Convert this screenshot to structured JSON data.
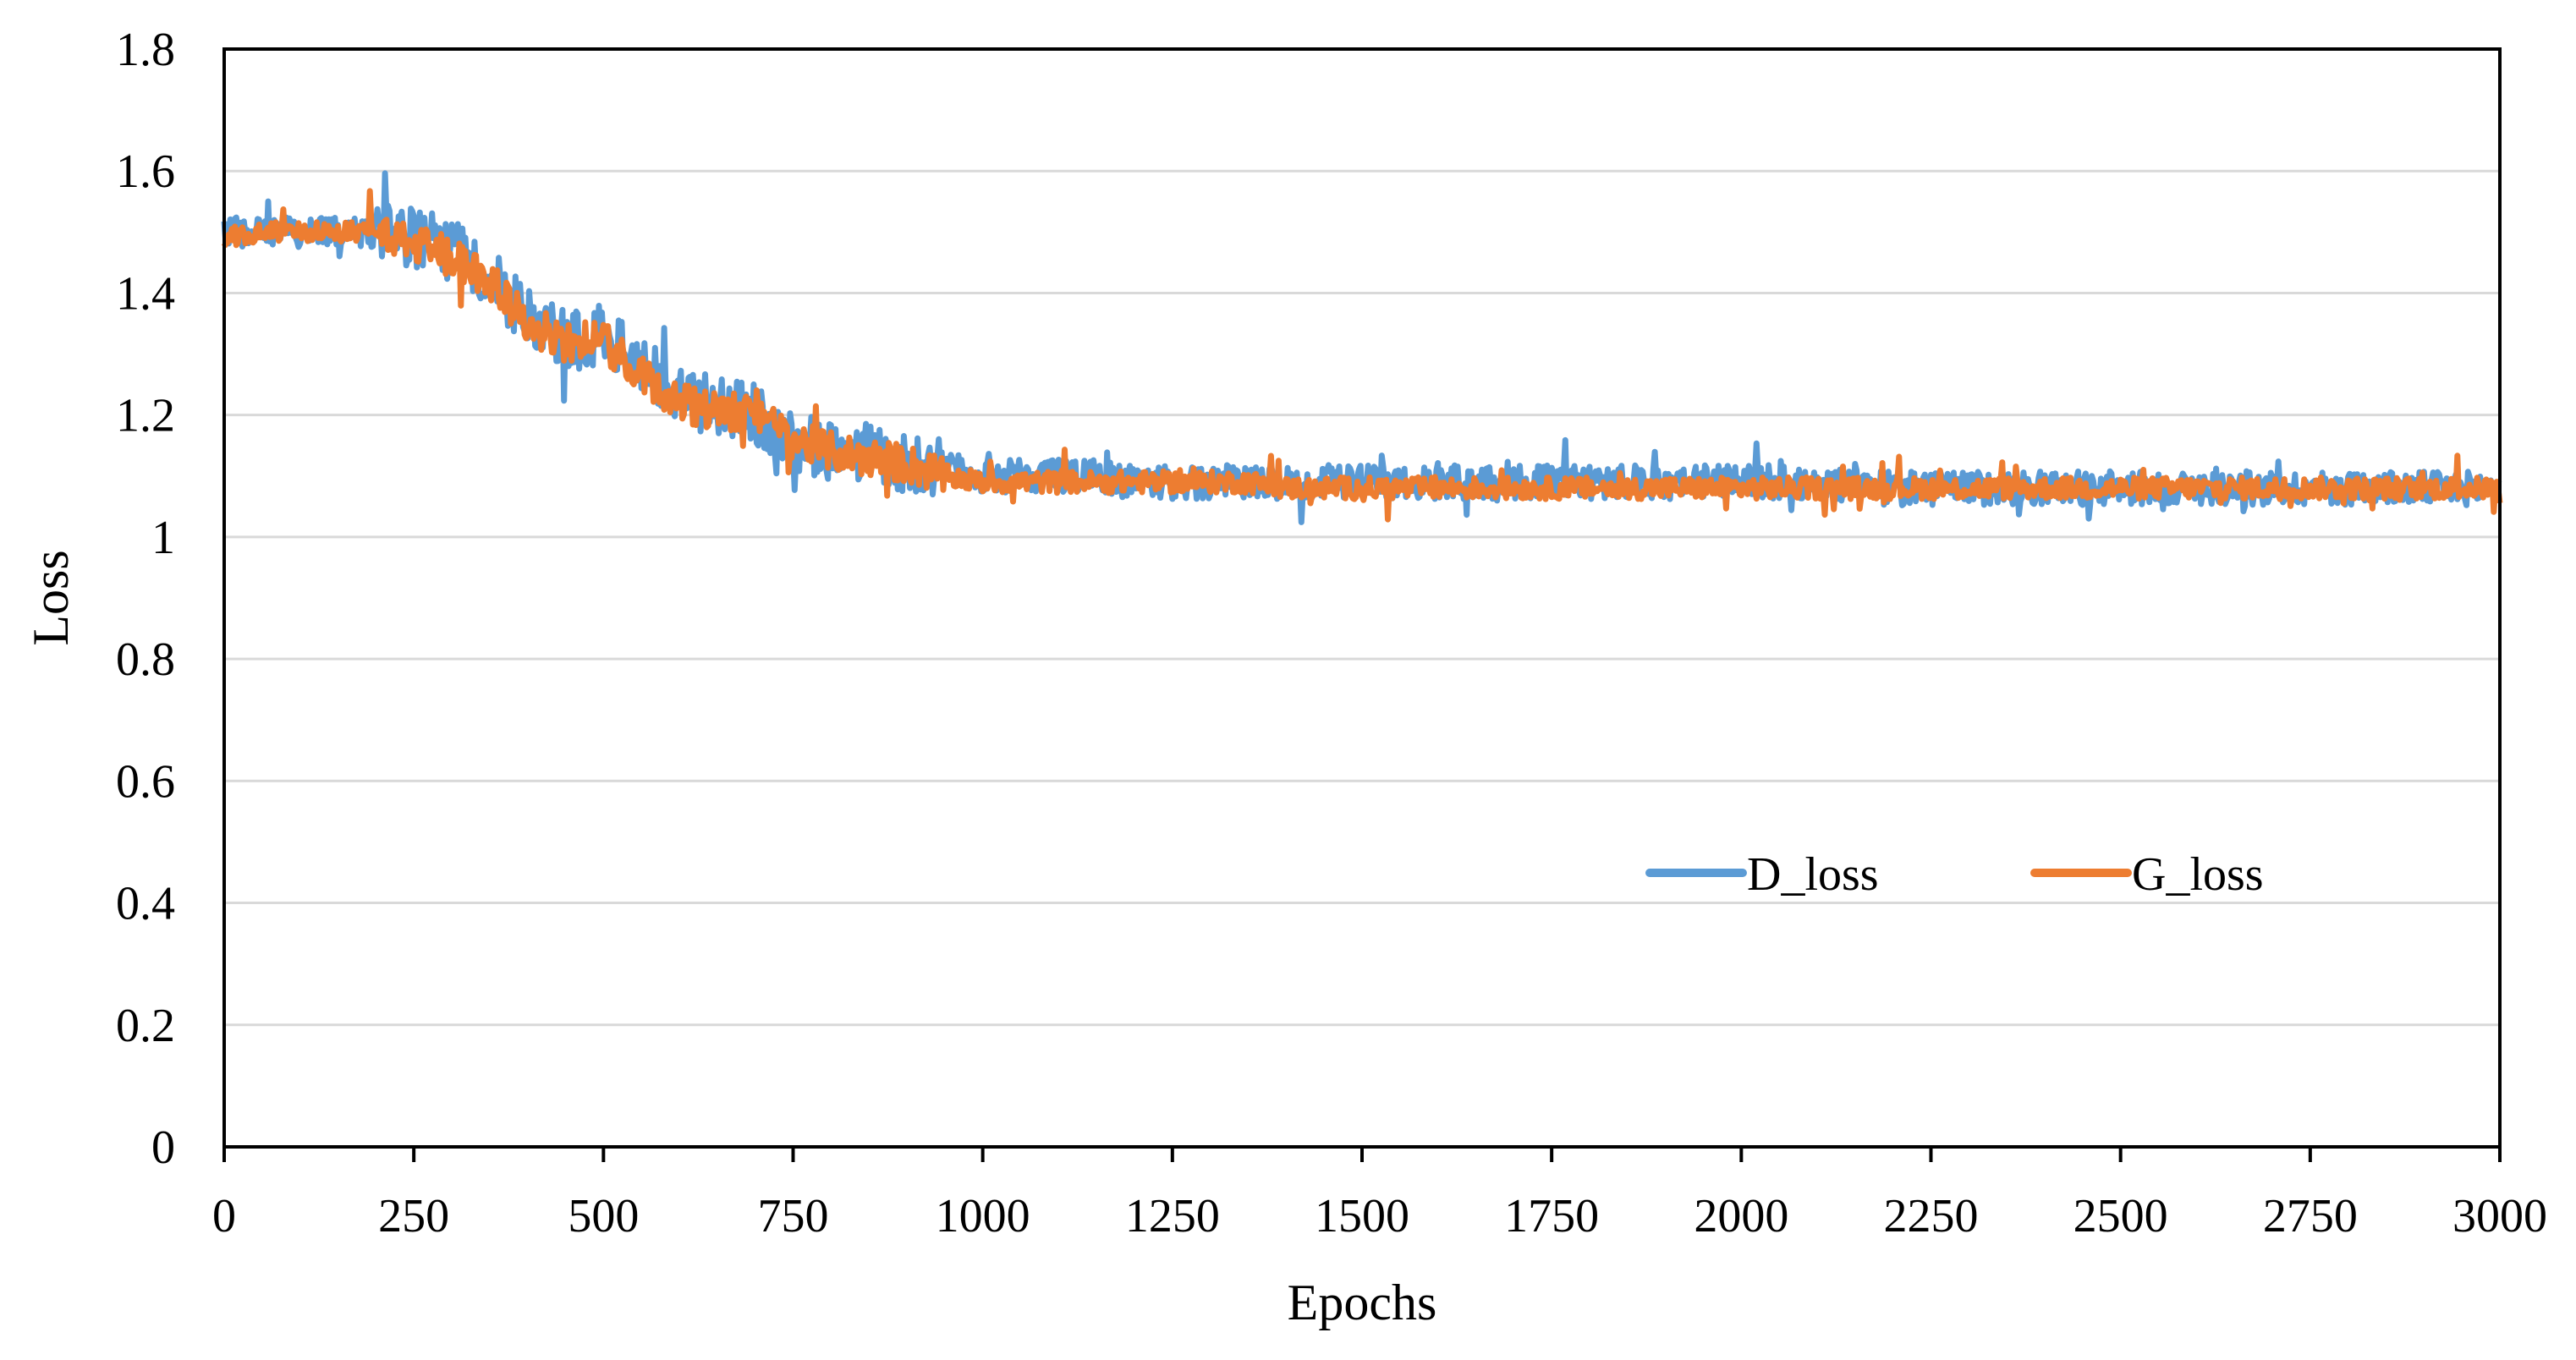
{
  "chart_data": {
    "type": "line",
    "title": "",
    "xlabel": "Epochs",
    "ylabel": "Loss",
    "xlim": [
      0,
      3000
    ],
    "ylim": [
      0,
      1.8
    ],
    "x_ticks": [
      "0",
      "250",
      "500",
      "750",
      "1000",
      "1250",
      "1500",
      "1750",
      "2000",
      "2250",
      "2500",
      "2750",
      "3000"
    ],
    "y_ticks": [
      "0",
      "0.2",
      "0.4",
      "0.6",
      "0.8",
      "1",
      "1.2",
      "1.4",
      "1.6",
      "1.8"
    ],
    "grid": true,
    "legend": {
      "placement": "lower-right-inside"
    },
    "series": [
      {
        "name": "D_loss",
        "color": "#5B9BD5",
        "x": [
          0,
          50,
          100,
          150,
          200,
          250,
          300,
          350,
          400,
          450,
          500,
          550,
          600,
          650,
          700,
          750,
          800,
          850,
          900,
          950,
          1000,
          1050,
          1100,
          1150,
          1200,
          1250,
          1300,
          1350,
          1400,
          1450,
          1500,
          1550,
          1600,
          1650,
          1700,
          1750,
          1800,
          1850,
          1900,
          1950,
          2000,
          2050,
          2100,
          2150,
          2200,
          2250,
          2300,
          2350,
          2400,
          2450,
          2500,
          2550,
          2600,
          2650,
          2700,
          2750,
          2800,
          2850,
          2900,
          2950,
          3000
        ],
        "y": [
          1.5,
          1.5,
          1.5,
          1.5,
          1.5,
          1.49,
          1.47,
          1.43,
          1.36,
          1.32,
          1.33,
          1.28,
          1.23,
          1.21,
          1.2,
          1.16,
          1.14,
          1.14,
          1.12,
          1.11,
          1.1,
          1.1,
          1.1,
          1.1,
          1.09,
          1.09,
          1.09,
          1.09,
          1.09,
          1.09,
          1.09,
          1.09,
          1.09,
          1.09,
          1.09,
          1.09,
          1.09,
          1.09,
          1.09,
          1.09,
          1.09,
          1.09,
          1.09,
          1.08,
          1.08,
          1.08,
          1.08,
          1.08,
          1.08,
          1.08,
          1.08,
          1.08,
          1.08,
          1.08,
          1.08,
          1.08,
          1.08,
          1.08,
          1.08,
          1.08,
          1.08
        ]
      },
      {
        "name": "G_loss",
        "color": "#ED7D31",
        "x": [
          0,
          50,
          100,
          150,
          200,
          250,
          300,
          350,
          400,
          450,
          500,
          550,
          600,
          650,
          700,
          750,
          800,
          850,
          900,
          950,
          1000,
          1050,
          1100,
          1150,
          1200,
          1250,
          1300,
          1350,
          1400,
          1450,
          1500,
          1550,
          1600,
          1650,
          1700,
          1750,
          1800,
          1850,
          1900,
          1950,
          2000,
          2050,
          2100,
          2150,
          2200,
          2250,
          2300,
          2350,
          2400,
          2450,
          2500,
          2550,
          2600,
          2650,
          2700,
          2750,
          2800,
          2850,
          2900,
          2950,
          3000
        ],
        "y": [
          1.49,
          1.5,
          1.5,
          1.5,
          1.5,
          1.48,
          1.46,
          1.42,
          1.35,
          1.32,
          1.32,
          1.27,
          1.22,
          1.21,
          1.2,
          1.16,
          1.14,
          1.13,
          1.12,
          1.1,
          1.09,
          1.09,
          1.09,
          1.09,
          1.09,
          1.09,
          1.09,
          1.09,
          1.08,
          1.08,
          1.08,
          1.08,
          1.08,
          1.08,
          1.08,
          1.08,
          1.08,
          1.08,
          1.08,
          1.08,
          1.08,
          1.08,
          1.08,
          1.08,
          1.08,
          1.08,
          1.08,
          1.08,
          1.08,
          1.08,
          1.08,
          1.08,
          1.08,
          1.08,
          1.08,
          1.08,
          1.08,
          1.08,
          1.08,
          1.08,
          1.08
        ]
      }
    ]
  }
}
